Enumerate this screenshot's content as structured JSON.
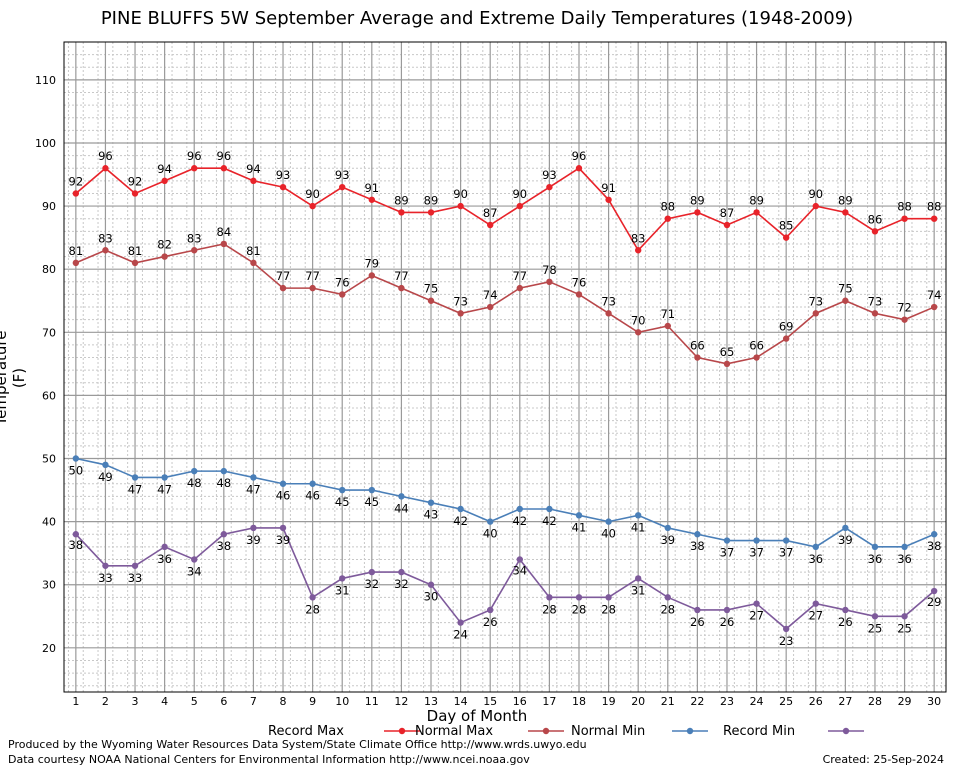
{
  "chart_data": {
    "type": "line",
    "title": "PINE BLUFFS 5W September Average and Extreme Daily Temperatures (1948-2009)",
    "xlabel": "Day of Month",
    "ylabel": "Temperature (F)",
    "x": [
      1,
      2,
      3,
      4,
      5,
      6,
      7,
      8,
      9,
      10,
      11,
      12,
      13,
      14,
      15,
      16,
      17,
      18,
      19,
      20,
      21,
      22,
      23,
      24,
      25,
      26,
      27,
      28,
      29,
      30
    ],
    "xlim": [
      0.6,
      30.4
    ],
    "ylim": [
      13,
      116
    ],
    "yticks": [
      20,
      30,
      40,
      50,
      60,
      70,
      80,
      90,
      100,
      110
    ],
    "grid": true,
    "legend_placement": "bottom",
    "series": [
      {
        "name": "Record Max",
        "color": "#e8232a",
        "values": [
          92,
          96,
          92,
          94,
          96,
          96,
          94,
          93,
          90,
          93,
          91,
          89,
          89,
          90,
          87,
          90,
          93,
          96,
          91,
          83,
          88,
          89,
          87,
          89,
          85,
          90,
          89,
          86,
          88,
          88
        ]
      },
      {
        "name": "Normal Max",
        "color": "#b8474a",
        "values": [
          81,
          83,
          81,
          82,
          83,
          84,
          81,
          77,
          77,
          76,
          79,
          77,
          75,
          73,
          74,
          77,
          78,
          76,
          73,
          70,
          71,
          66,
          65,
          66,
          69,
          73,
          75,
          73,
          72,
          74
        ]
      },
      {
        "name": "Normal Min",
        "color": "#4a7fb8",
        "values": [
          50,
          49,
          47,
          47,
          48,
          48,
          47,
          46,
          46,
          45,
          45,
          44,
          43,
          42,
          40,
          42,
          42,
          41,
          40,
          41,
          39,
          38,
          37,
          37,
          37,
          36,
          39,
          36,
          36,
          38
        ]
      },
      {
        "name": "Record Min",
        "color": "#7e5a9b",
        "values": [
          38,
          33,
          33,
          36,
          34,
          38,
          39,
          39,
          28,
          31,
          32,
          32,
          30,
          24,
          26,
          34,
          28,
          28,
          28,
          31,
          28,
          26,
          26,
          27,
          23,
          27,
          26,
          25,
          25,
          29
        ]
      }
    ]
  },
  "footer": {
    "line1": "Produced by the Wyoming Water Resources Data System/State Climate Office http://www.wrds.uwyo.edu",
    "line2": "Data courtesy NOAA National Centers for Environmental Information http://www.ncei.noaa.gov",
    "created": "Created:  25-Sep-2024"
  }
}
